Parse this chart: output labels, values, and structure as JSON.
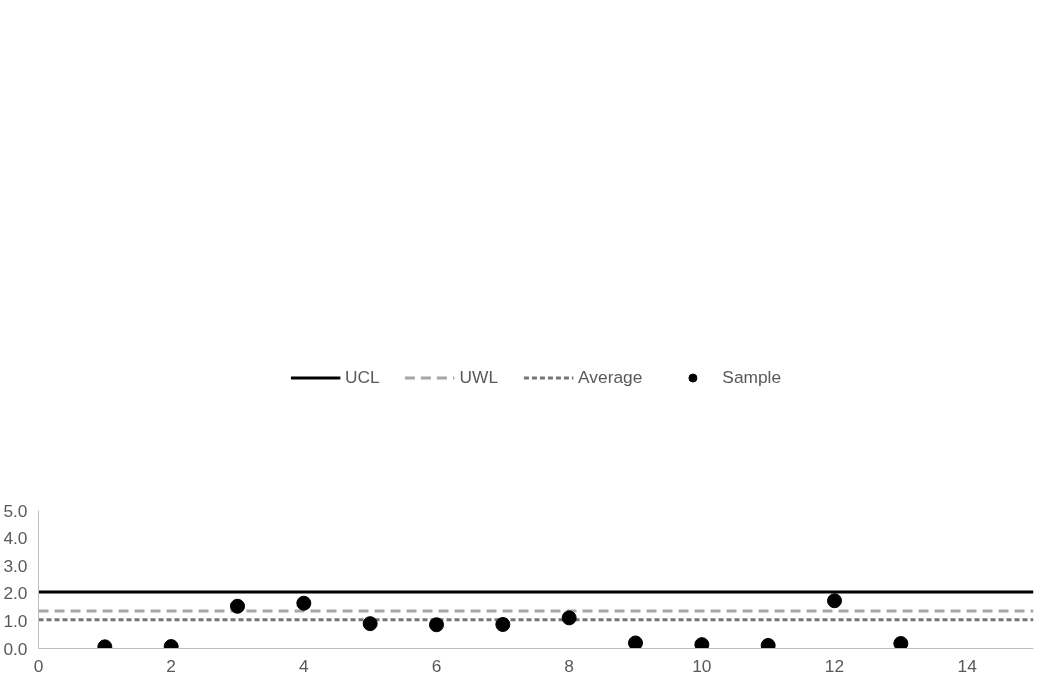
{
  "chart_data": {
    "type": "scatter",
    "xlim": [
      0,
      15
    ],
    "ylim": [
      0,
      5
    ],
    "xticks": [
      0,
      2,
      4,
      6,
      8,
      10,
      12,
      14
    ],
    "yticks": [
      {
        "value": 0,
        "label": "0.0"
      },
      {
        "value": 1,
        "label": "1.0"
      },
      {
        "value": 2,
        "label": "2.0"
      },
      {
        "value": 3,
        "label": "3.0"
      },
      {
        "value": 4,
        "label": "4.0"
      },
      {
        "value": 5,
        "label": "5.0"
      }
    ],
    "grid": false,
    "legend": "top",
    "series": [
      {
        "name": "UCL",
        "type": "line",
        "marker": "none",
        "line_style": "solid",
        "color": "#000000",
        "x": [
          0,
          15
        ],
        "values": [
          2.05,
          2.05
        ]
      },
      {
        "name": "UWL",
        "type": "line",
        "marker": "none",
        "line_style": "dashed",
        "color": "#a6a6a6",
        "x": [
          0,
          15
        ],
        "values": [
          1.36,
          1.36
        ]
      },
      {
        "name": "Average",
        "type": "line",
        "marker": "none",
        "line_style": "dotted",
        "color": "#767676",
        "x": [
          0,
          15
        ],
        "values": [
          1.04,
          1.04
        ]
      },
      {
        "name": "Sample",
        "marker": "circle",
        "color": "#000000",
        "x": [
          1,
          2,
          3,
          4,
          5,
          6,
          7,
          8,
          9,
          10,
          11,
          12,
          13
        ],
        "values": [
          0.06,
          0.07,
          1.53,
          1.64,
          0.9,
          0.86,
          0.87,
          1.11,
          0.2,
          0.14,
          0.11,
          1.73,
          0.18
        ]
      }
    ]
  }
}
